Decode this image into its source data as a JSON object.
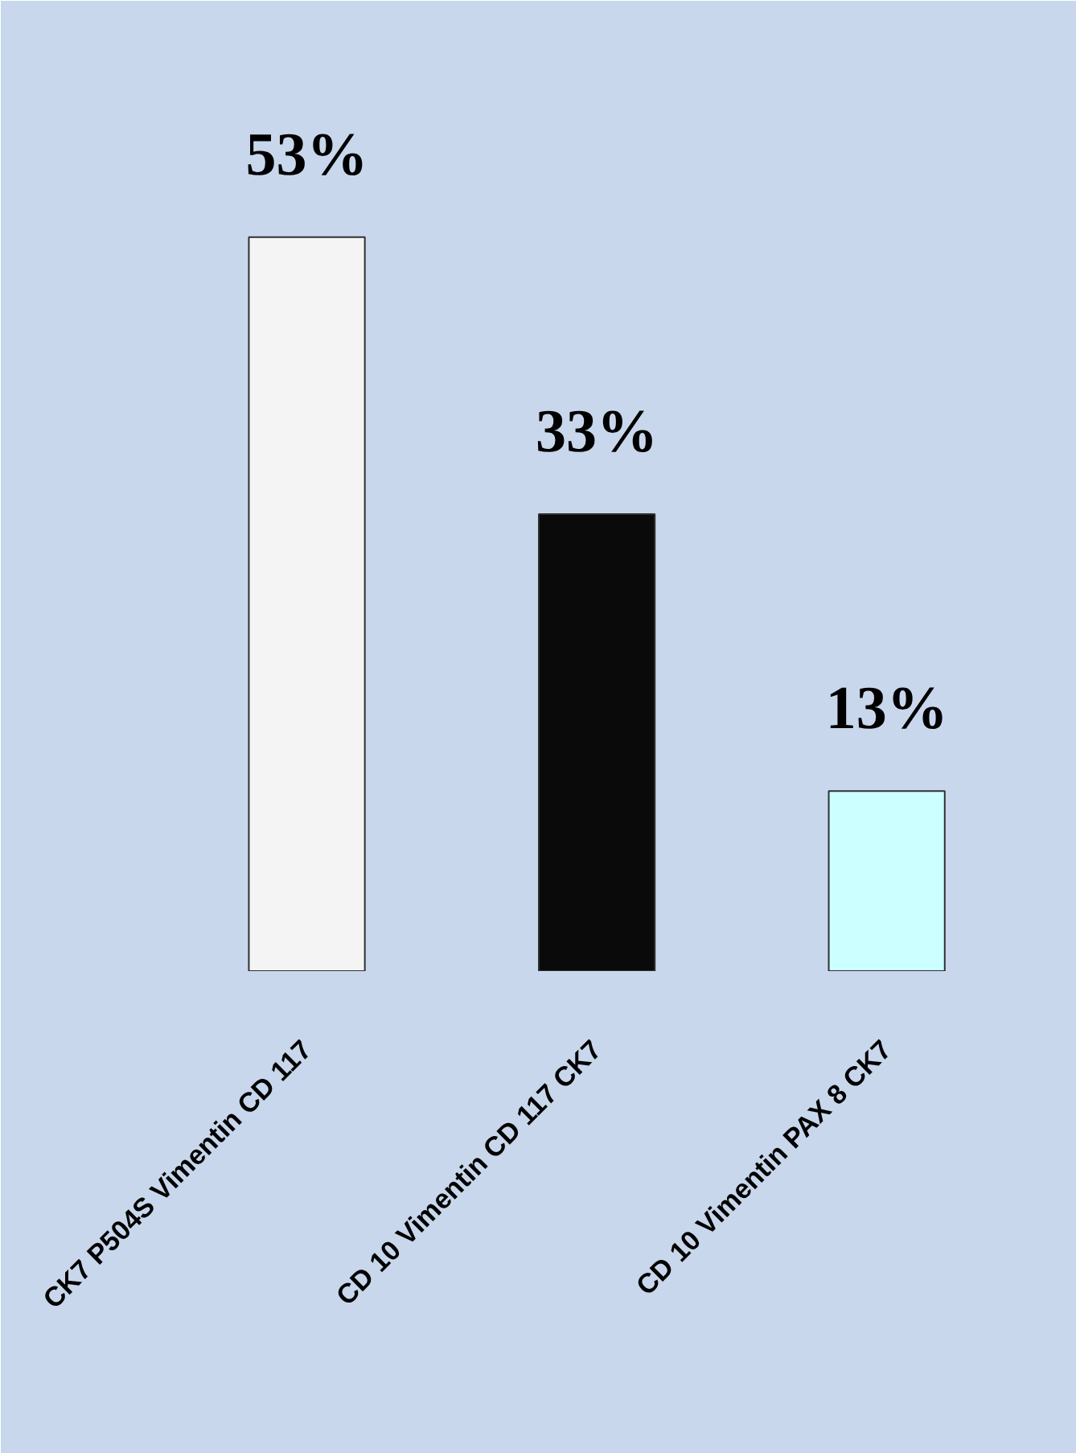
{
  "chart_data": {
    "type": "bar",
    "categories": [
      "CK7 P504S Vimentin CD 117",
      "CD 10 Vimentin CD 117 CK7",
      "CD 10 Vimentin PAX 8 CK7"
    ],
    "values": [
      53,
      33,
      13
    ],
    "colors": [
      "#f4f4f4",
      "#0a0a0a",
      "#ccffff"
    ],
    "value_labels": [
      "53%",
      "33%",
      "13%"
    ]
  }
}
